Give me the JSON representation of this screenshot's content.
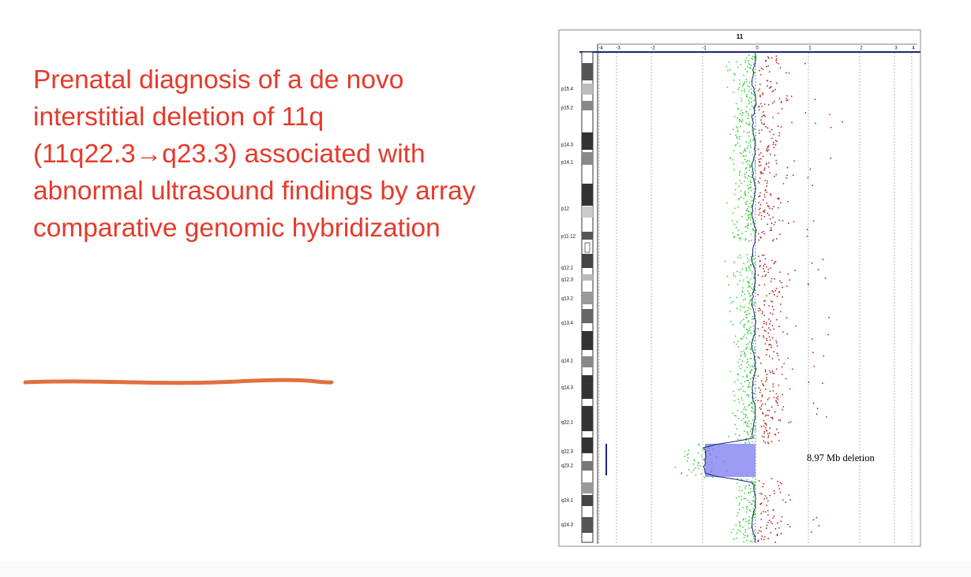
{
  "slide": {
    "title": "Prenatal diagnosis of a de novo interstitial deletion of 11q (11q22.3→q23.3) associated with abnormal ultrasound findings by array comparative genomic hybridization"
  },
  "figure": {
    "chromosome": "11",
    "xticks": [
      -4,
      -3,
      -2,
      -1,
      0,
      1,
      2,
      3,
      4
    ],
    "bands": [
      "p15.4",
      "p15.2",
      "p14.3",
      "p14.1",
      "p12",
      "p11.12",
      "q12.1",
      "q12.3",
      "q13.2",
      "q13.4",
      "q14.1",
      "q14.3",
      "q22.1",
      "q22.3",
      "q23.2",
      "q24.1",
      "q24.3"
    ],
    "annotation": "8.97 Mb deletion"
  }
}
